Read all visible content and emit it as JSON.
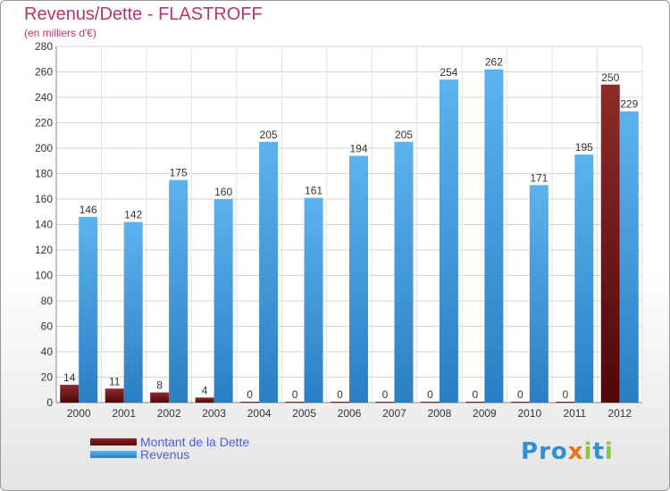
{
  "title": "Revenus/Dette - FLASTROFF",
  "subtitle": "(en milliers d'€)",
  "logo": "Proxiti",
  "legend": {
    "dette": "Montant de la Dette",
    "revenus": "Revenus"
  },
  "colors": {
    "dette": "#7a1416",
    "revenus": "#4aa3e3",
    "title": "#b5356b",
    "legend_text": "#4a5fd6"
  },
  "chart_data": {
    "type": "bar",
    "categories": [
      "2000",
      "2001",
      "2002",
      "2003",
      "2004",
      "2005",
      "2006",
      "2007",
      "2008",
      "2009",
      "2010",
      "2011",
      "2012"
    ],
    "series": [
      {
        "name": "Montant de la Dette",
        "values": [
          14,
          11,
          8,
          4,
          0,
          0,
          0,
          0,
          0,
          0,
          0,
          0,
          250
        ]
      },
      {
        "name": "Revenus",
        "values": [
          146,
          142,
          175,
          160,
          205,
          161,
          194,
          205,
          254,
          262,
          171,
          195,
          229
        ]
      }
    ],
    "title": "Revenus/Dette - FLASTROFF",
    "ylabel": "(en milliers d'€)",
    "ylim": [
      0,
      280
    ],
    "yticks": [
      0,
      20,
      40,
      60,
      80,
      100,
      120,
      140,
      160,
      180,
      200,
      220,
      240,
      260,
      280
    ],
    "grid": true,
    "legend_position": "bottom-left"
  }
}
